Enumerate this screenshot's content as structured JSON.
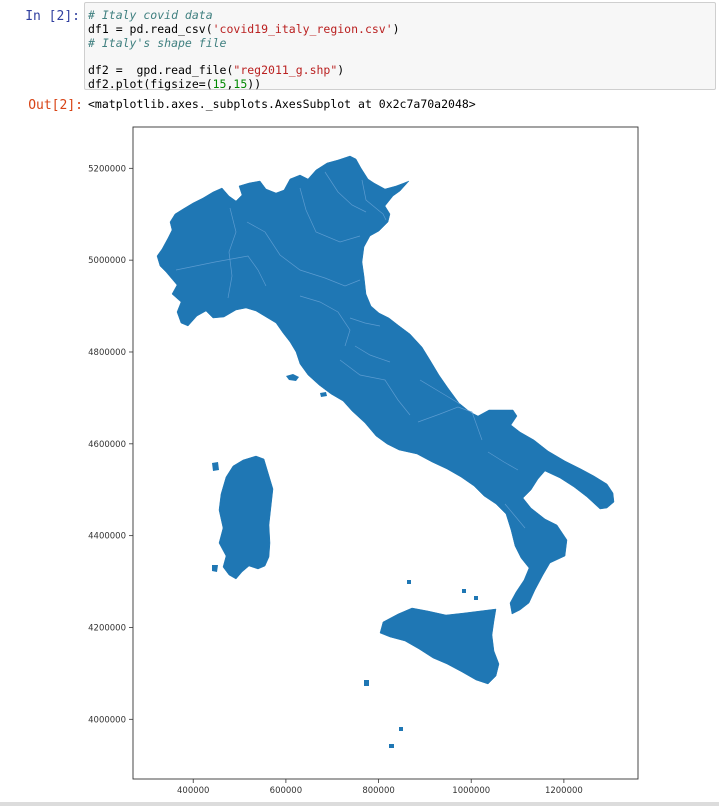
{
  "cell": {
    "in_prompt": "In [2]:",
    "out_prompt": "Out[2]:",
    "code": {
      "l1_comment": "# Italy covid data",
      "l2_a": "df1 = pd.read_csv(",
      "l2_str": "'covid19_italy_region.csv'",
      "l2_b": ")",
      "l3_comment": "# Italy's shape file",
      "l5_a": "df2 =  gpd.read_file(",
      "l5_str": "\"reg2011_g.shp\"",
      "l5_b": ")",
      "l6_a": "df2.plot(figsize=(",
      "l6_n1": "15",
      "l6_c": ",",
      "l6_n2": "15",
      "l6_b": "))"
    },
    "output_text": "<matplotlib.axes._subplots.AxesSubplot at 0x2c7a70a2048>"
  },
  "chart_data": {
    "type": "map",
    "title": "",
    "xlabel": "",
    "ylabel": "",
    "xlim": [
      270000,
      1360000
    ],
    "ylim": [
      3870000,
      5290000
    ],
    "x_ticks": [
      400000,
      600000,
      800000,
      1000000,
      1200000
    ],
    "x_tick_labels": [
      "400000",
      "600000",
      "800000",
      "1000000",
      "1200000"
    ],
    "y_ticks": [
      4000000,
      4200000,
      4400000,
      4600000,
      4800000,
      5000000,
      5200000
    ],
    "y_tick_labels": [
      "4000000",
      "4200000",
      "4400000",
      "4600000",
      "4800000",
      "5000000",
      "5200000"
    ],
    "fill_color": "#1f77b4",
    "edge_color": "#4a8ec4",
    "grid": false
  }
}
